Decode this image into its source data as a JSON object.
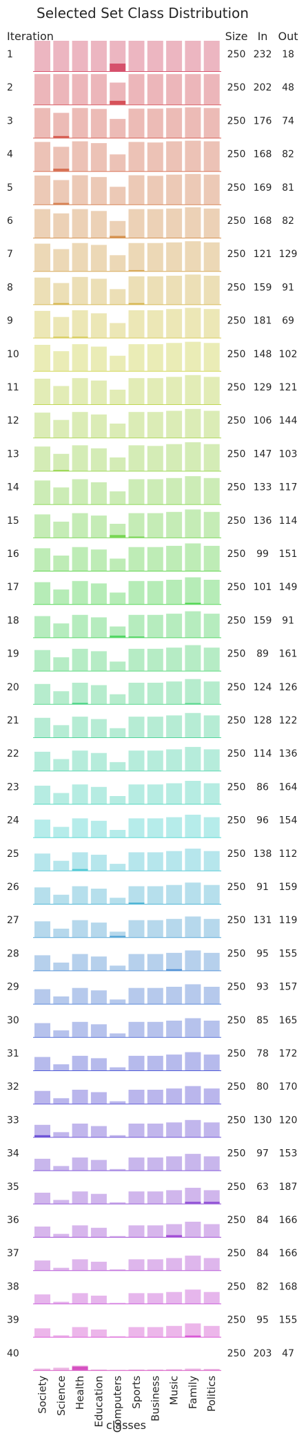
{
  "chart_data": {
    "type": "bar",
    "title": "Selected Set Class Distribution",
    "xlabel": "classes",
    "row_header": "Iteration",
    "column_headers": [
      "Size",
      "In",
      "Out"
    ],
    "categories": [
      "Society",
      "Science",
      "Health",
      "Education",
      "Computers",
      "Sports",
      "Business",
      "Music",
      "Family",
      "Politics"
    ],
    "grid": false,
    "legend": "none",
    "color_start": "#f08a9e",
    "color_end": "#e87ad6",
    "iterations": [
      {
        "label": "1",
        "size": "250",
        "in": "232",
        "out": "18",
        "values": [
          1.0,
          1.0,
          1.0,
          1.0,
          1.0,
          1.0,
          1.0,
          1.0,
          1.0,
          1.0
        ],
        "selected": [
          0,
          0,
          0,
          0,
          0.25,
          0,
          0,
          0,
          0,
          0
        ]
      },
      {
        "label": "2",
        "size": "250",
        "in": "202",
        "out": "48",
        "values": [
          1.0,
          1.0,
          1.0,
          1.0,
          0.72,
          1.0,
          1.0,
          1.0,
          1.0,
          1.0
        ],
        "selected": [
          0,
          0,
          0,
          0,
          0.12,
          0,
          0,
          0,
          0,
          0
        ]
      },
      {
        "label": "3",
        "size": "250",
        "in": "176",
        "out": "74",
        "values": [
          0.98,
          0.82,
          0.98,
          0.95,
          0.62,
          0.96,
          0.96,
          0.98,
          1.0,
          0.98
        ],
        "selected": [
          0,
          0.06,
          0,
          0,
          0,
          0,
          0,
          0,
          0,
          0
        ]
      },
      {
        "label": "4",
        "size": "250",
        "in": "168",
        "out": "82",
        "values": [
          0.96,
          0.8,
          0.98,
          0.92,
          0.55,
          0.96,
          0.94,
          0.98,
          1.0,
          0.98
        ],
        "selected": [
          0,
          0.08,
          0,
          0,
          0,
          0,
          0,
          0,
          0,
          0
        ]
      },
      {
        "label": "5",
        "size": "250",
        "in": "169",
        "out": "81",
        "values": [
          0.95,
          0.8,
          0.96,
          0.9,
          0.58,
          0.96,
          0.94,
          0.98,
          1.0,
          0.98
        ],
        "selected": [
          0,
          0.05,
          0,
          0,
          0,
          0,
          0,
          0,
          0,
          0
        ]
      },
      {
        "label": "6",
        "size": "250",
        "in": "168",
        "out": "82",
        "values": [
          0.94,
          0.8,
          0.94,
          0.88,
          0.55,
          0.94,
          0.94,
          0.96,
          1.0,
          0.96
        ],
        "selected": [
          0,
          0,
          0,
          0,
          0.06,
          0,
          0,
          0,
          0,
          0
        ]
      },
      {
        "label": "7",
        "size": "250",
        "in": "121",
        "out": "129",
        "values": [
          0.9,
          0.72,
          0.92,
          0.86,
          0.52,
          0.92,
          0.92,
          0.94,
          0.98,
          0.94
        ],
        "selected": [
          0,
          0,
          0,
          0,
          0,
          0.03,
          0,
          0,
          0,
          0
        ]
      },
      {
        "label": "8",
        "size": "250",
        "in": "159",
        "out": "91",
        "values": [
          0.88,
          0.7,
          0.9,
          0.84,
          0.5,
          0.92,
          0.92,
          0.94,
          0.98,
          0.94
        ],
        "selected": [
          0,
          0.04,
          0,
          0,
          0,
          0.04,
          0,
          0,
          0,
          0
        ]
      },
      {
        "label": "9",
        "size": "250",
        "in": "181",
        "out": "69",
        "values": [
          0.88,
          0.68,
          0.9,
          0.8,
          0.48,
          0.9,
          0.9,
          0.94,
          0.98,
          0.94
        ],
        "selected": [
          0,
          0.03,
          0.03,
          0,
          0,
          0,
          0,
          0,
          0,
          0
        ]
      },
      {
        "label": "10",
        "size": "250",
        "in": "148",
        "out": "102",
        "values": [
          0.86,
          0.65,
          0.88,
          0.8,
          0.5,
          0.88,
          0.88,
          0.92,
          0.96,
          0.92
        ],
        "selected": [
          0,
          0,
          0,
          0,
          0,
          0,
          0,
          0,
          0,
          0
        ]
      },
      {
        "label": "11",
        "size": "250",
        "in": "129",
        "out": "121",
        "values": [
          0.84,
          0.6,
          0.86,
          0.78,
          0.48,
          0.86,
          0.86,
          0.9,
          0.96,
          0.9
        ],
        "selected": [
          0,
          0,
          0,
          0,
          0,
          0,
          0,
          0,
          0,
          0
        ]
      },
      {
        "label": "12",
        "size": "250",
        "in": "106",
        "out": "144",
        "values": [
          0.82,
          0.58,
          0.84,
          0.76,
          0.46,
          0.84,
          0.84,
          0.88,
          0.94,
          0.88
        ],
        "selected": [
          0,
          0,
          0,
          0,
          0,
          0,
          0,
          0,
          0,
          0
        ]
      },
      {
        "label": "13",
        "size": "250",
        "in": "147",
        "out": "103",
        "values": [
          0.8,
          0.56,
          0.84,
          0.74,
          0.44,
          0.84,
          0.82,
          0.88,
          0.94,
          0.88
        ],
        "selected": [
          0,
          0.03,
          0,
          0,
          0,
          0,
          0,
          0,
          0,
          0
        ]
      },
      {
        "label": "14",
        "size": "250",
        "in": "133",
        "out": "117",
        "values": [
          0.78,
          0.55,
          0.82,
          0.72,
          0.42,
          0.82,
          0.82,
          0.86,
          0.92,
          0.86
        ],
        "selected": [
          0,
          0,
          0,
          0,
          0,
          0,
          0,
          0,
          0,
          0
        ]
      },
      {
        "label": "15",
        "size": "250",
        "in": "136",
        "out": "114",
        "values": [
          0.76,
          0.52,
          0.8,
          0.72,
          0.45,
          0.8,
          0.8,
          0.84,
          0.92,
          0.84
        ],
        "selected": [
          0,
          0,
          0,
          0,
          0.08,
          0.03,
          0,
          0,
          0,
          0
        ]
      },
      {
        "label": "16",
        "size": "250",
        "in": "99",
        "out": "151",
        "values": [
          0.74,
          0.5,
          0.78,
          0.7,
          0.4,
          0.78,
          0.78,
          0.82,
          0.9,
          0.82
        ],
        "selected": [
          0,
          0,
          0,
          0,
          0,
          0,
          0,
          0,
          0,
          0
        ]
      },
      {
        "label": "17",
        "size": "250",
        "in": "101",
        "out": "149",
        "values": [
          0.72,
          0.48,
          0.76,
          0.68,
          0.38,
          0.76,
          0.76,
          0.8,
          0.88,
          0.8
        ],
        "selected": [
          0,
          0,
          0,
          0,
          0,
          0,
          0,
          0,
          0.04,
          0
        ]
      },
      {
        "label": "18",
        "size": "250",
        "in": "159",
        "out": "91",
        "values": [
          0.7,
          0.46,
          0.74,
          0.66,
          0.36,
          0.74,
          0.74,
          0.78,
          0.86,
          0.78
        ],
        "selected": [
          0,
          0,
          0,
          0,
          0.06,
          0.03,
          0,
          0,
          0,
          0
        ]
      },
      {
        "label": "19",
        "size": "250",
        "in": "89",
        "out": "161",
        "values": [
          0.68,
          0.44,
          0.72,
          0.64,
          0.3,
          0.72,
          0.72,
          0.76,
          0.84,
          0.76
        ],
        "selected": [
          0,
          0,
          0,
          0,
          0,
          0,
          0,
          0,
          0,
          0
        ]
      },
      {
        "label": "20",
        "size": "250",
        "in": "124",
        "out": "126",
        "values": [
          0.66,
          0.42,
          0.7,
          0.62,
          0.32,
          0.7,
          0.7,
          0.74,
          0.82,
          0.74
        ],
        "selected": [
          0,
          0,
          0.04,
          0,
          0,
          0,
          0,
          0,
          0.03,
          0
        ]
      },
      {
        "label": "21",
        "size": "250",
        "in": "128",
        "out": "122",
        "values": [
          0.64,
          0.4,
          0.68,
          0.6,
          0.3,
          0.68,
          0.68,
          0.72,
          0.8,
          0.72
        ],
        "selected": [
          0,
          0,
          0,
          0,
          0,
          0,
          0,
          0,
          0,
          0
        ]
      },
      {
        "label": "22",
        "size": "250",
        "in": "114",
        "out": "136",
        "values": [
          0.62,
          0.38,
          0.66,
          0.58,
          0.28,
          0.66,
          0.66,
          0.7,
          0.78,
          0.7
        ],
        "selected": [
          0,
          0,
          0,
          0,
          0,
          0,
          0,
          0,
          0,
          0
        ]
      },
      {
        "label": "23",
        "size": "250",
        "in": "86",
        "out": "164",
        "values": [
          0.6,
          0.36,
          0.64,
          0.56,
          0.26,
          0.64,
          0.64,
          0.68,
          0.76,
          0.68
        ],
        "selected": [
          0,
          0,
          0,
          0,
          0,
          0,
          0,
          0,
          0,
          0
        ]
      },
      {
        "label": "24",
        "size": "250",
        "in": "96",
        "out": "154",
        "values": [
          0.58,
          0.34,
          0.62,
          0.54,
          0.24,
          0.62,
          0.62,
          0.66,
          0.74,
          0.66
        ],
        "selected": [
          0,
          0,
          0,
          0,
          0,
          0,
          0,
          0,
          0,
          0
        ]
      },
      {
        "label": "25",
        "size": "250",
        "in": "138",
        "out": "112",
        "values": [
          0.56,
          0.32,
          0.6,
          0.52,
          0.22,
          0.6,
          0.6,
          0.64,
          0.72,
          0.64
        ],
        "selected": [
          0,
          0,
          0.05,
          0,
          0,
          0,
          0,
          0,
          0,
          0
        ]
      },
      {
        "label": "26",
        "size": "250",
        "in": "91",
        "out": "159",
        "values": [
          0.54,
          0.3,
          0.58,
          0.5,
          0.2,
          0.58,
          0.58,
          0.62,
          0.7,
          0.62
        ],
        "selected": [
          0,
          0,
          0,
          0,
          0,
          0.04,
          0,
          0,
          0,
          0
        ]
      },
      {
        "label": "27",
        "size": "250",
        "in": "131",
        "out": "119",
        "values": [
          0.52,
          0.28,
          0.56,
          0.48,
          0.18,
          0.56,
          0.56,
          0.6,
          0.68,
          0.6
        ],
        "selected": [
          0,
          0,
          0,
          0,
          0.04,
          0,
          0,
          0,
          0,
          0
        ]
      },
      {
        "label": "28",
        "size": "250",
        "in": "95",
        "out": "155",
        "values": [
          0.5,
          0.26,
          0.54,
          0.46,
          0.16,
          0.54,
          0.54,
          0.58,
          0.66,
          0.58
        ],
        "selected": [
          0,
          0,
          0,
          0,
          0,
          0,
          0,
          0.04,
          0,
          0
        ]
      },
      {
        "label": "29",
        "size": "250",
        "in": "93",
        "out": "157",
        "values": [
          0.48,
          0.24,
          0.52,
          0.44,
          0.14,
          0.52,
          0.52,
          0.56,
          0.64,
          0.56
        ],
        "selected": [
          0,
          0,
          0,
          0,
          0,
          0,
          0,
          0,
          0,
          0
        ]
      },
      {
        "label": "30",
        "size": "250",
        "in": "85",
        "out": "165",
        "values": [
          0.46,
          0.22,
          0.5,
          0.42,
          0.12,
          0.5,
          0.5,
          0.54,
          0.62,
          0.54
        ],
        "selected": [
          0,
          0,
          0,
          0,
          0,
          0,
          0,
          0,
          0,
          0
        ]
      },
      {
        "label": "31",
        "size": "250",
        "in": "78",
        "out": "172",
        "values": [
          0.44,
          0.2,
          0.48,
          0.4,
          0.1,
          0.48,
          0.48,
          0.52,
          0.6,
          0.52
        ],
        "selected": [
          0,
          0,
          0,
          0,
          0,
          0,
          0,
          0,
          0,
          0
        ]
      },
      {
        "label": "32",
        "size": "250",
        "in": "80",
        "out": "170",
        "values": [
          0.42,
          0.18,
          0.46,
          0.38,
          0.08,
          0.46,
          0.46,
          0.5,
          0.58,
          0.5
        ],
        "selected": [
          0,
          0,
          0,
          0,
          0,
          0,
          0,
          0,
          0,
          0
        ]
      },
      {
        "label": "33",
        "size": "250",
        "in": "130",
        "out": "120",
        "values": [
          0.4,
          0.16,
          0.44,
          0.36,
          0.06,
          0.44,
          0.44,
          0.48,
          0.56,
          0.48
        ],
        "selected": [
          0.06,
          0,
          0,
          0,
          0,
          0,
          0,
          0,
          0,
          0
        ]
      },
      {
        "label": "34",
        "size": "250",
        "in": "97",
        "out": "153",
        "values": [
          0.38,
          0.14,
          0.42,
          0.34,
          0.04,
          0.42,
          0.42,
          0.46,
          0.54,
          0.46
        ],
        "selected": [
          0,
          0,
          0,
          0,
          0,
          0,
          0,
          0,
          0,
          0
        ]
      },
      {
        "label": "35",
        "size": "250",
        "in": "63",
        "out": "187",
        "values": [
          0.36,
          0.12,
          0.4,
          0.32,
          0.04,
          0.4,
          0.4,
          0.44,
          0.52,
          0.44
        ],
        "selected": [
          0,
          0,
          0,
          0,
          0,
          0,
          0,
          0,
          0.06,
          0.06
        ]
      },
      {
        "label": "36",
        "size": "250",
        "in": "84",
        "out": "166",
        "values": [
          0.34,
          0.1,
          0.38,
          0.3,
          0.03,
          0.38,
          0.38,
          0.42,
          0.5,
          0.42
        ],
        "selected": [
          0,
          0,
          0,
          0,
          0,
          0,
          0,
          0.06,
          0,
          0
        ]
      },
      {
        "label": "37",
        "size": "250",
        "in": "84",
        "out": "166",
        "values": [
          0.32,
          0.08,
          0.36,
          0.28,
          0.03,
          0.36,
          0.36,
          0.4,
          0.48,
          0.4
        ],
        "selected": [
          0,
          0,
          0,
          0,
          0,
          0,
          0,
          0,
          0,
          0
        ]
      },
      {
        "label": "38",
        "size": "250",
        "in": "82",
        "out": "168",
        "values": [
          0.3,
          0.06,
          0.34,
          0.26,
          0.02,
          0.34,
          0.34,
          0.38,
          0.46,
          0.38
        ],
        "selected": [
          0,
          0,
          0,
          0,
          0,
          0,
          0,
          0,
          0,
          0
        ]
      },
      {
        "label": "39",
        "size": "250",
        "in": "95",
        "out": "155",
        "values": [
          0.28,
          0.05,
          0.32,
          0.24,
          0.02,
          0.32,
          0.32,
          0.36,
          0.44,
          0.36
        ],
        "selected": [
          0,
          0,
          0,
          0,
          0,
          0,
          0,
          0,
          0.04,
          0
        ]
      },
      {
        "label": "40",
        "size": "250",
        "in": "203",
        "out": "47",
        "values": [
          0.05,
          0.08,
          0.15,
          0.02,
          0.01,
          0.02,
          0.02,
          0.03,
          0.05,
          0.04
        ],
        "selected": [
          0,
          0,
          0.12,
          0,
          0,
          0,
          0,
          0,
          0,
          0
        ]
      }
    ]
  }
}
